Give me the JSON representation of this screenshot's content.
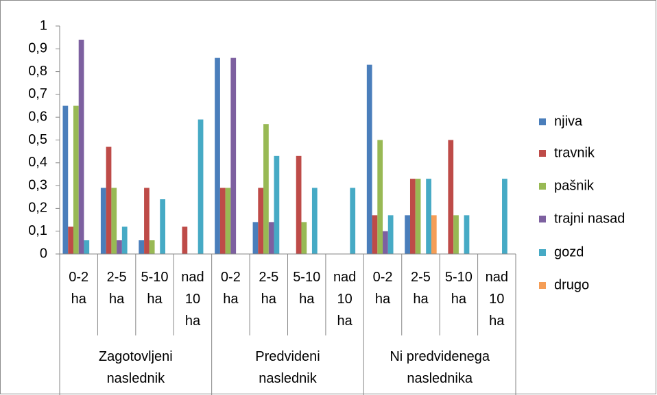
{
  "chart_data": {
    "type": "bar",
    "categories": [
      "0-2 ha",
      "2-5 ha",
      "5-10 ha",
      "nad 10 ha",
      "0-2 ha",
      "2-5 ha",
      "5-10 ha",
      "nad 10 ha",
      "0-2 ha",
      "2-5 ha",
      "5-10 ha",
      "nad 10 ha"
    ],
    "groups": [
      "Zagotovljeni naslednik",
      "Predvideni naslednik",
      "Ni predvidenega naslednika"
    ],
    "series": [
      {
        "name": "njiva",
        "color": "#4a7ebb",
        "values": [
          0.65,
          0.29,
          0.06,
          0,
          0.86,
          0.14,
          0,
          0,
          0.83,
          0.17,
          0,
          0
        ]
      },
      {
        "name": "travnik",
        "color": "#be4b48",
        "values": [
          0.12,
          0.47,
          0.29,
          0.12,
          0.29,
          0.29,
          0.43,
          0,
          0.17,
          0.33,
          0.5,
          0
        ]
      },
      {
        "name": "pašnik",
        "color": "#98b954",
        "values": [
          0.65,
          0.29,
          0.06,
          0,
          0.29,
          0.57,
          0.14,
          0,
          0.5,
          0.33,
          0.17,
          0
        ]
      },
      {
        "name": "trajni nasad",
        "color": "#7d60a0",
        "values": [
          0.94,
          0.06,
          0,
          0,
          0.86,
          0.14,
          0,
          0,
          0.1,
          0,
          0,
          0
        ]
      },
      {
        "name": "gozd",
        "color": "#46aac5",
        "values": [
          0.06,
          0.12,
          0.24,
          0.59,
          0,
          0.43,
          0.29,
          0.29,
          0.17,
          0.33,
          0.17,
          0.33
        ]
      },
      {
        "name": "drugo",
        "color": "#f59d56",
        "values": [
          0,
          0,
          0,
          0,
          0,
          0,
          0,
          0,
          0,
          0.17,
          0,
          0
        ]
      }
    ],
    "ylim": [
      0,
      1
    ],
    "yticks": [
      0,
      {
        "value": 0.1,
        "label": "0,1"
      },
      {
        "value": 0.2,
        "label": "0,2"
      },
      {
        "value": 0.3,
        "label": "0,3"
      },
      {
        "value": 0.4,
        "label": "0,4"
      },
      {
        "value": 0.5,
        "label": "0,5"
      },
      {
        "value": 0.6,
        "label": "0,6"
      },
      {
        "value": 0.7,
        "label": "0,7"
      },
      {
        "value": 0.8,
        "label": "0,8"
      },
      {
        "value": 0.9,
        "label": "0,9"
      },
      1
    ],
    "legend": "right"
  }
}
